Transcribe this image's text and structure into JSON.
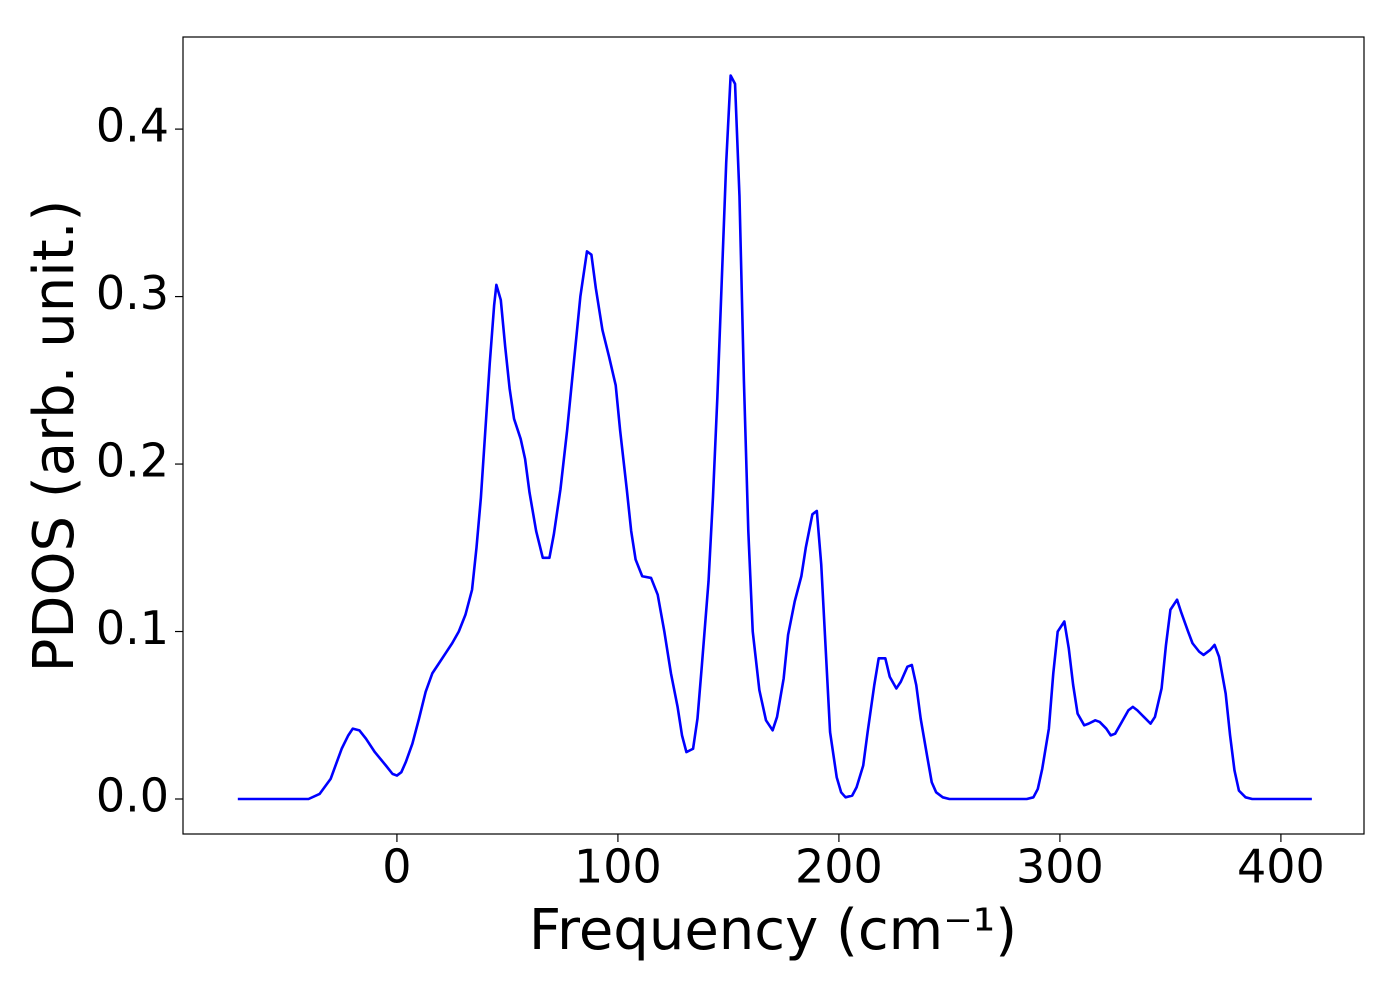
{
  "chart_data": {
    "type": "line",
    "xlabel": "Frequency (cm⁻¹)",
    "ylabel": "PDOS (arb. unit.)",
    "x": [
      -72,
      -40,
      -35,
      -30,
      -25,
      -22,
      -20,
      -17,
      -14,
      -10,
      -5,
      -2,
      0,
      2,
      4,
      7,
      10,
      13,
      16,
      19,
      22,
      25,
      28,
      31,
      34,
      36,
      38,
      40,
      42,
      44,
      45,
      47,
      49,
      51,
      53,
      56,
      58,
      60,
      63,
      66,
      69,
      71,
      74,
      77,
      80,
      83,
      86,
      88,
      90,
      93,
      96,
      99,
      101,
      104,
      106,
      108,
      111,
      115,
      118,
      121,
      124,
      127,
      129,
      131,
      134,
      136,
      138,
      141,
      143,
      145,
      147,
      149,
      151,
      153,
      155,
      157,
      159,
      161,
      164,
      167,
      170,
      172,
      175,
      177,
      180,
      183,
      185,
      188,
      190,
      192,
      194,
      196,
      199,
      201,
      203,
      206,
      208,
      211,
      213,
      216,
      218,
      221,
      223,
      226,
      228,
      231,
      233,
      235,
      237,
      240,
      242,
      244,
      247,
      250,
      285,
      288,
      290,
      292,
      295,
      297,
      299,
      302,
      304,
      306,
      308,
      311,
      313,
      316,
      318,
      321,
      323,
      325,
      328,
      331,
      333,
      335,
      338,
      341,
      343,
      346,
      348,
      350,
      353,
      355,
      358,
      360,
      363,
      365,
      368,
      370,
      372,
      375,
      377,
      379,
      381,
      384,
      387,
      414
    ],
    "series": [
      {
        "color": "#0000ff",
        "values": [
          0,
          0,
          0.003,
          0.012,
          0.03,
          0.038,
          0.042,
          0.041,
          0.036,
          0.028,
          0.02,
          0.015,
          0.014,
          0.016,
          0.022,
          0.033,
          0.048,
          0.064,
          0.075,
          0.081,
          0.087,
          0.093,
          0.1,
          0.11,
          0.125,
          0.15,
          0.18,
          0.22,
          0.26,
          0.295,
          0.307,
          0.298,
          0.27,
          0.245,
          0.227,
          0.215,
          0.203,
          0.183,
          0.16,
          0.144,
          0.144,
          0.158,
          0.185,
          0.22,
          0.26,
          0.3,
          0.327,
          0.325,
          0.305,
          0.28,
          0.264,
          0.247,
          0.22,
          0.185,
          0.16,
          0.143,
          0.133,
          0.132,
          0.122,
          0.1,
          0.075,
          0.055,
          0.038,
          0.028,
          0.03,
          0.048,
          0.08,
          0.13,
          0.18,
          0.24,
          0.31,
          0.38,
          0.432,
          0.427,
          0.36,
          0.25,
          0.16,
          0.1,
          0.065,
          0.047,
          0.041,
          0.049,
          0.072,
          0.098,
          0.118,
          0.133,
          0.15,
          0.17,
          0.172,
          0.14,
          0.09,
          0.04,
          0.013,
          0.004,
          0.001,
          0.002,
          0.007,
          0.02,
          0.04,
          0.068,
          0.084,
          0.084,
          0.073,
          0.066,
          0.07,
          0.079,
          0.08,
          0.068,
          0.048,
          0.025,
          0.01,
          0.004,
          0.001,
          0,
          0,
          0.001,
          0.006,
          0.018,
          0.042,
          0.075,
          0.1,
          0.106,
          0.09,
          0.068,
          0.051,
          0.044,
          0.045,
          0.047,
          0.046,
          0.042,
          0.038,
          0.039,
          0.046,
          0.053,
          0.055,
          0.053,
          0.049,
          0.045,
          0.049,
          0.066,
          0.092,
          0.113,
          0.119,
          0.111,
          0.1,
          0.093,
          0.088,
          0.086,
          0.089,
          0.092,
          0.085,
          0.063,
          0.038,
          0.017,
          0.005,
          0.001,
          0,
          0
        ]
      }
    ],
    "xlim": [
      -96.8,
      437.6
    ],
    "ylim": [
      -0.0209,
      0.455
    ],
    "xticks": [
      0,
      100,
      200,
      300,
      400
    ],
    "yticks": [
      {
        "value": 0,
        "label": "0.0"
      },
      0.1,
      0.2,
      0.3,
      0.4
    ]
  }
}
